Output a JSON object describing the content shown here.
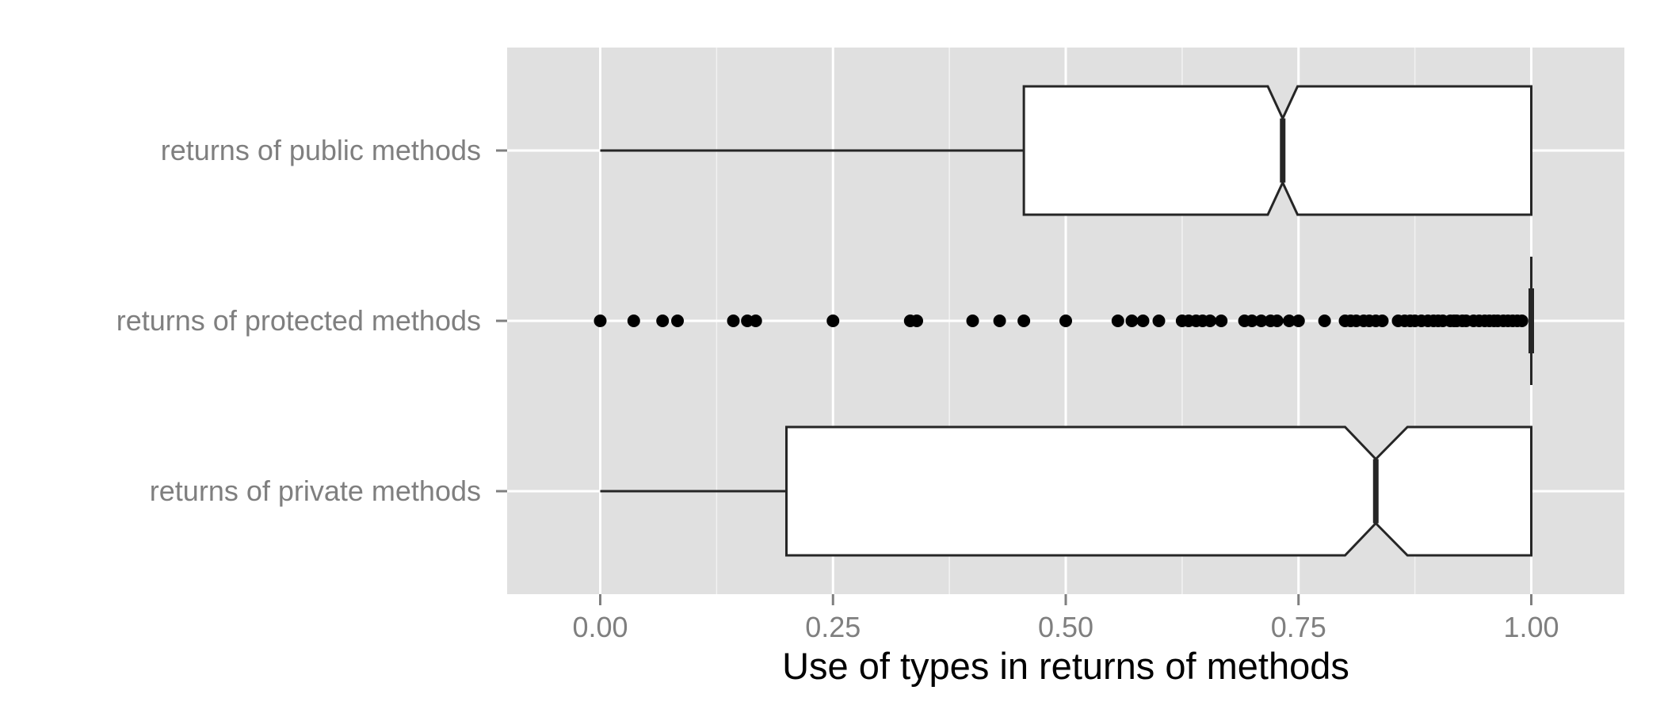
{
  "chart_data": {
    "type": "boxplot",
    "orientation": "horizontal",
    "notched": true,
    "xlabel": "Use of types in returns of methods",
    "xlim": [
      -0.1,
      1.1
    ],
    "x_ticks": [
      0.0,
      0.25,
      0.5,
      0.75,
      1.0
    ],
    "x_tick_labels": [
      "0.00",
      "0.25",
      "0.50",
      "0.75",
      "1.00"
    ],
    "grid": true,
    "colors": {
      "panel": "#e0e0e0",
      "grid": "#ffffff",
      "box_fill": "#ffffff",
      "stroke": "#262626",
      "outlier": "#000000"
    },
    "categories": [
      "returns of public methods",
      "returns of protected methods",
      "returns of private methods"
    ],
    "boxes": [
      {
        "category": "returns of public methods",
        "min": 0.0,
        "q1": 0.455,
        "median": 0.733,
        "q3": 1.0,
        "max": 1.0,
        "notch_low": 0.717,
        "notch_high": 0.749,
        "outliers": []
      },
      {
        "category": "returns of protected methods",
        "min": 1.0,
        "q1": 1.0,
        "median": 1.0,
        "q3": 1.0,
        "max": 1.0,
        "notch_low": 1.0,
        "notch_high": 1.0,
        "outliers": [
          0.0,
          0.036,
          0.067,
          0.083,
          0.143,
          0.158,
          0.167,
          0.25,
          0.333,
          0.34,
          0.4,
          0.429,
          0.455,
          0.5,
          0.556,
          0.571,
          0.583,
          0.6,
          0.625,
          0.632,
          0.64,
          0.647,
          0.655,
          0.667,
          0.692,
          0.7,
          0.71,
          0.72,
          0.727,
          0.74,
          0.75,
          0.778,
          0.8,
          0.806,
          0.812,
          0.82,
          0.826,
          0.833,
          0.84,
          0.857,
          0.864,
          0.87,
          0.875,
          0.882,
          0.889,
          0.895,
          0.9,
          0.905,
          0.913,
          0.917,
          0.92,
          0.926,
          0.93,
          0.938,
          0.944,
          0.95,
          0.955,
          0.96,
          0.964,
          0.97,
          0.975,
          0.98,
          0.985,
          0.99
        ]
      },
      {
        "category": "returns of private methods",
        "min": 0.0,
        "q1": 0.2,
        "median": 0.833,
        "q3": 1.0,
        "max": 1.0,
        "notch_low": 0.8,
        "notch_high": 0.867,
        "outliers": []
      }
    ]
  }
}
